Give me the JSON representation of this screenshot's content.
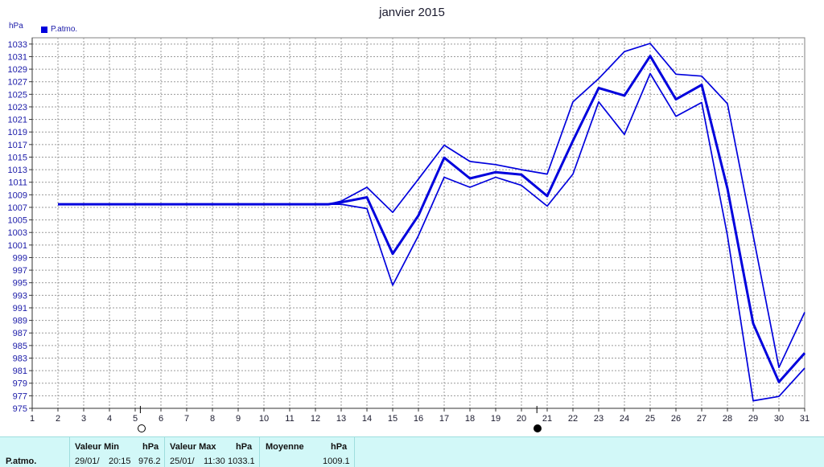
{
  "title": "janvier 2015",
  "unit": "hPa",
  "legend": "P.atmo.",
  "moon_phases": [
    {
      "name": "full-moon",
      "day": 5.2
    },
    {
      "name": "new-moon",
      "day": 20.6
    }
  ],
  "chart_data": {
    "type": "line",
    "title": "janvier 2015",
    "ylabel": "hPa",
    "xlim": [
      1,
      31
    ],
    "ylim": [
      975,
      1034
    ],
    "yticks": [
      975,
      977,
      979,
      981,
      983,
      985,
      987,
      989,
      991,
      993,
      995,
      997,
      999,
      1001,
      1003,
      1005,
      1007,
      1009,
      1011,
      1013,
      1015,
      1017,
      1019,
      1021,
      1023,
      1025,
      1027,
      1029,
      1031,
      1033
    ],
    "xticks": [
      1,
      2,
      3,
      4,
      5,
      6,
      7,
      8,
      9,
      10,
      11,
      12,
      13,
      14,
      15,
      16,
      17,
      18,
      19,
      20,
      21,
      22,
      23,
      24,
      25,
      26,
      27,
      28,
      29,
      30,
      31
    ],
    "grid": true,
    "legend_position": "top-left",
    "color": "#0000dd",
    "series": [
      {
        "name": "P.atmo.",
        "x": [
          2,
          12.5,
          13,
          14,
          15,
          16,
          17,
          18,
          19,
          20,
          21,
          22,
          23,
          24,
          25,
          26,
          27,
          28,
          29,
          30,
          31
        ],
        "values": [
          1007.5,
          1007.5,
          1007.8,
          1008.6,
          999.6,
          1005.7,
          1014.9,
          1011.6,
          1012.6,
          1012.2,
          1008.8,
          1017.6,
          1026,
          1024.8,
          1031.1,
          1024.2,
          1026.5,
          1010,
          988.5,
          979.2,
          983.8
        ]
      },
      {
        "x": [
          2,
          12.5,
          13,
          14,
          15,
          16,
          17,
          18,
          19,
          20,
          21,
          22,
          23,
          24,
          25,
          26,
          27,
          28,
          29,
          30,
          31
        ],
        "values": [
          1007.5,
          1007.5,
          1008,
          1010.2,
          1006.2,
          1011.5,
          1016.9,
          1014.3,
          1013.8,
          1013,
          1012.3,
          1023.8,
          1027.5,
          1031.8,
          1033.1,
          1028.2,
          1027.9,
          1023.5,
          1002.5,
          981.5,
          990.3
        ]
      },
      {
        "x": [
          2,
          12.5,
          13,
          14,
          15,
          16,
          17,
          18,
          19,
          20,
          21,
          22,
          23,
          24,
          25,
          26,
          27,
          28,
          29,
          30,
          31
        ],
        "values": [
          1007.5,
          1007.5,
          1007.5,
          1006.8,
          994.6,
          1002.5,
          1011.8,
          1010.2,
          1011.8,
          1010.5,
          1007.2,
          1012.3,
          1023.8,
          1018.6,
          1028.3,
          1021.5,
          1023.7,
          1002.5,
          976.2,
          976.9,
          981.4
        ]
      }
    ]
  },
  "footer": {
    "serie": "P.atmo.",
    "min": {
      "header": "Valeur Min",
      "unit": "hPa",
      "date": "29/01/",
      "time": "20:15",
      "value": "976.2"
    },
    "max": {
      "header": "Valeur Max",
      "unit": "hPa",
      "date": "25/01/",
      "time": "11:30",
      "value": "1033.1"
    },
    "mean": {
      "header": "Moyenne",
      "unit": "hPa",
      "value": "1009.1"
    }
  }
}
